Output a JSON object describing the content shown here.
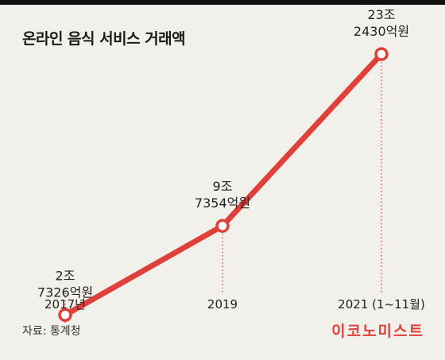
{
  "title": "온라인 음식 서비스 거래액",
  "source": "자료: 통계청",
  "brand": "이코노미스트",
  "colors": {
    "line": "#e0403a",
    "background": "#f2f0ea",
    "text": "#222222",
    "rule": "#111111"
  },
  "chart_data": {
    "type": "line",
    "title": "온라인 음식 서비스 거래액",
    "categories": [
      "2017년",
      "2019",
      "2021 (1~11월)"
    ],
    "values": [
      27326,
      97354,
      232430
    ],
    "value_unit": "억원",
    "data_labels": [
      [
        "2조",
        "7326억원"
      ],
      [
        "9조",
        "7354억원"
      ],
      [
        "23조",
        "2430억원"
      ]
    ],
    "ylim": [
      0,
      250000
    ],
    "grid": false,
    "legend": "none"
  }
}
